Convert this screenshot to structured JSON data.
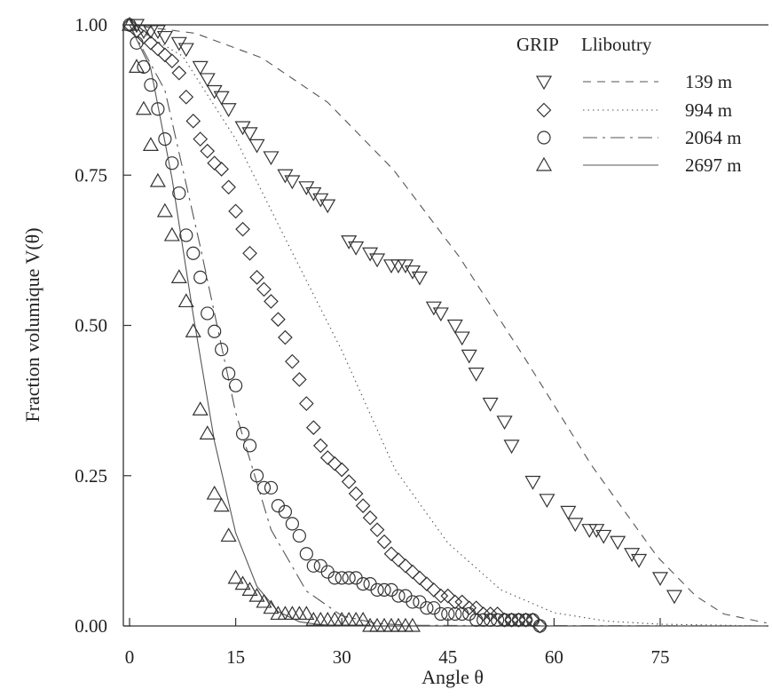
{
  "chart_data": {
    "type": "scatter",
    "xlabel": "Angle θ",
    "ylabel": "Fraction volumique V(θ)",
    "xlim": [
      0,
      90
    ],
    "ylim": [
      0,
      1
    ],
    "x_ticks": [
      "0",
      "15",
      "30",
      "45",
      "60",
      "75"
    ],
    "y_ticks": [
      "0.00",
      "0.25",
      "0.50",
      "0.75",
      "1.00"
    ],
    "legend": {
      "placement": "top-right",
      "header_markers": "GRIP",
      "header_lines": "Lliboutry"
    },
    "series": [
      {
        "name": "139 m",
        "marker": "triangle-down",
        "line": "dashed",
        "points": [
          [
            1,
            1.0
          ],
          [
            2,
            0.99
          ],
          [
            3,
            0.99
          ],
          [
            4,
            0.99
          ],
          [
            5,
            0.98
          ],
          [
            7,
            0.97
          ],
          [
            8,
            0.96
          ],
          [
            10,
            0.93
          ],
          [
            11,
            0.91
          ],
          [
            12,
            0.89
          ],
          [
            13,
            0.88
          ],
          [
            14,
            0.86
          ],
          [
            16,
            0.83
          ],
          [
            17,
            0.82
          ],
          [
            18,
            0.8
          ],
          [
            20,
            0.78
          ],
          [
            22,
            0.75
          ],
          [
            23,
            0.74
          ],
          [
            25,
            0.73
          ],
          [
            26,
            0.72
          ],
          [
            27,
            0.71
          ],
          [
            28,
            0.7
          ],
          [
            31,
            0.64
          ],
          [
            32,
            0.63
          ],
          [
            34,
            0.62
          ],
          [
            35,
            0.61
          ],
          [
            37,
            0.6
          ],
          [
            38,
            0.6
          ],
          [
            39,
            0.6
          ],
          [
            40,
            0.59
          ],
          [
            41,
            0.58
          ],
          [
            43,
            0.53
          ],
          [
            44,
            0.52
          ],
          [
            46,
            0.5
          ],
          [
            47,
            0.48
          ],
          [
            48,
            0.45
          ],
          [
            49,
            0.42
          ],
          [
            51,
            0.37
          ],
          [
            53,
            0.34
          ],
          [
            54,
            0.3
          ],
          [
            57,
            0.24
          ],
          [
            59,
            0.21
          ],
          [
            62,
            0.19
          ],
          [
            63,
            0.17
          ],
          [
            65,
            0.16
          ],
          [
            66,
            0.16
          ],
          [
            67,
            0.15
          ],
          [
            69,
            0.14
          ],
          [
            71,
            0.12
          ],
          [
            72,
            0.11
          ],
          [
            75,
            0.08
          ],
          [
            77,
            0.05
          ]
        ],
        "curve": [
          [
            0,
            1.0
          ],
          [
            9.3,
            0.986
          ],
          [
            18.7,
            0.945
          ],
          [
            28,
            0.871
          ],
          [
            37.3,
            0.759
          ],
          [
            46.6,
            0.614
          ],
          [
            56,
            0.443
          ],
          [
            65.3,
            0.267
          ],
          [
            74.6,
            0.115
          ],
          [
            80,
            0.05
          ],
          [
            84,
            0.02
          ],
          [
            90,
            0.005
          ]
        ]
      },
      {
        "name": "994 m",
        "marker": "diamond",
        "line": "dotted",
        "points": [
          [
            0,
            1.0
          ],
          [
            1,
            0.99
          ],
          [
            2,
            0.98
          ],
          [
            3,
            0.97
          ],
          [
            4,
            0.96
          ],
          [
            5,
            0.95
          ],
          [
            6,
            0.94
          ],
          [
            7,
            0.92
          ],
          [
            8,
            0.88
          ],
          [
            9,
            0.84
          ],
          [
            10,
            0.81
          ],
          [
            11,
            0.79
          ],
          [
            12,
            0.77
          ],
          [
            13,
            0.76
          ],
          [
            14,
            0.73
          ],
          [
            15,
            0.69
          ],
          [
            16,
            0.66
          ],
          [
            17,
            0.62
          ],
          [
            18,
            0.58
          ],
          [
            19,
            0.56
          ],
          [
            20,
            0.54
          ],
          [
            21,
            0.51
          ],
          [
            22,
            0.48
          ],
          [
            23,
            0.44
          ],
          [
            24,
            0.41
          ],
          [
            25,
            0.37
          ],
          [
            26,
            0.33
          ],
          [
            27,
            0.3
          ],
          [
            28,
            0.28
          ],
          [
            29,
            0.27
          ],
          [
            30,
            0.26
          ],
          [
            31,
            0.24
          ],
          [
            32,
            0.22
          ],
          [
            33,
            0.2
          ],
          [
            34,
            0.18
          ],
          [
            35,
            0.16
          ],
          [
            36,
            0.14
          ],
          [
            37,
            0.12
          ],
          [
            38,
            0.11
          ],
          [
            39,
            0.1
          ],
          [
            40,
            0.09
          ],
          [
            41,
            0.08
          ],
          [
            42,
            0.07
          ],
          [
            43,
            0.06
          ],
          [
            44,
            0.05
          ],
          [
            45,
            0.05
          ],
          [
            46,
            0.04
          ],
          [
            47,
            0.04
          ],
          [
            48,
            0.03
          ],
          [
            49,
            0.03
          ],
          [
            50,
            0.02
          ],
          [
            51,
            0.02
          ],
          [
            52,
            0.02
          ],
          [
            53,
            0.01
          ],
          [
            54,
            0.01
          ],
          [
            55,
            0.01
          ],
          [
            56,
            0.01
          ],
          [
            57,
            0.01
          ],
          [
            58,
            0.0
          ]
        ],
        "curve": [
          [
            0,
            1.0
          ],
          [
            7.5,
            0.948
          ],
          [
            15,
            0.81
          ],
          [
            22.5,
            0.633
          ],
          [
            30,
            0.458
          ],
          [
            37.5,
            0.261
          ],
          [
            45,
            0.138
          ],
          [
            52.5,
            0.06
          ],
          [
            60,
            0.022
          ],
          [
            67.5,
            0.008
          ],
          [
            75,
            0.003
          ],
          [
            90,
            0.0
          ]
        ]
      },
      {
        "name": "2064 m",
        "marker": "circle",
        "line": "dash-dot",
        "points": [
          [
            0,
            1.0
          ],
          [
            1,
            0.97
          ],
          [
            2,
            0.93
          ],
          [
            3,
            0.9
          ],
          [
            4,
            0.86
          ],
          [
            5,
            0.81
          ],
          [
            6,
            0.77
          ],
          [
            7,
            0.72
          ],
          [
            8,
            0.65
          ],
          [
            9,
            0.62
          ],
          [
            10,
            0.58
          ],
          [
            11,
            0.52
          ],
          [
            12,
            0.49
          ],
          [
            13,
            0.46
          ],
          [
            14,
            0.42
          ],
          [
            15,
            0.4
          ],
          [
            16,
            0.32
          ],
          [
            17,
            0.3
          ],
          [
            18,
            0.25
          ],
          [
            19,
            0.23
          ],
          [
            20,
            0.23
          ],
          [
            21,
            0.2
          ],
          [
            22,
            0.19
          ],
          [
            23,
            0.17
          ],
          [
            24,
            0.15
          ],
          [
            25,
            0.12
          ],
          [
            26,
            0.1
          ],
          [
            27,
            0.1
          ],
          [
            28,
            0.09
          ],
          [
            29,
            0.08
          ],
          [
            30,
            0.08
          ],
          [
            31,
            0.08
          ],
          [
            32,
            0.08
          ],
          [
            33,
            0.07
          ],
          [
            34,
            0.07
          ],
          [
            35,
            0.06
          ],
          [
            36,
            0.06
          ],
          [
            37,
            0.06
          ],
          [
            38,
            0.05
          ],
          [
            39,
            0.05
          ],
          [
            40,
            0.04
          ],
          [
            41,
            0.04
          ],
          [
            42,
            0.03
          ],
          [
            43,
            0.03
          ],
          [
            44,
            0.02
          ],
          [
            45,
            0.02
          ],
          [
            46,
            0.02
          ],
          [
            47,
            0.02
          ],
          [
            48,
            0.02
          ],
          [
            49,
            0.01
          ],
          [
            50,
            0.01
          ],
          [
            51,
            0.01
          ],
          [
            52,
            0.01
          ],
          [
            53,
            0.01
          ],
          [
            54,
            0.01
          ],
          [
            55,
            0.01
          ],
          [
            56,
            0.01
          ],
          [
            57,
            0.01
          ],
          [
            58,
            0.0
          ]
        ],
        "curve": [
          [
            0,
            1.0
          ],
          [
            5,
            0.891
          ],
          [
            10,
            0.631
          ],
          [
            15,
            0.355
          ],
          [
            20,
            0.16
          ],
          [
            25,
            0.058
          ],
          [
            30,
            0.017
          ],
          [
            35,
            0.004
          ],
          [
            40,
            0.001
          ],
          [
            90,
            0.0
          ]
        ]
      },
      {
        "name": "2697 m",
        "marker": "triangle-up",
        "line": "solid",
        "points": [
          [
            0,
            1.0
          ],
          [
            1,
            0.93
          ],
          [
            2,
            0.86
          ],
          [
            3,
            0.8
          ],
          [
            4,
            0.74
          ],
          [
            5,
            0.69
          ],
          [
            6,
            0.65
          ],
          [
            7,
            0.58
          ],
          [
            8,
            0.54
          ],
          [
            9,
            0.49
          ],
          [
            10,
            0.36
          ],
          [
            11,
            0.32
          ],
          [
            12,
            0.22
          ],
          [
            13,
            0.2
          ],
          [
            14,
            0.15
          ],
          [
            15,
            0.08
          ],
          [
            16,
            0.07
          ],
          [
            17,
            0.06
          ],
          [
            18,
            0.05
          ],
          [
            19,
            0.04
          ],
          [
            20,
            0.03
          ],
          [
            21,
            0.02
          ],
          [
            22,
            0.02
          ],
          [
            23,
            0.02
          ],
          [
            24,
            0.02
          ],
          [
            25,
            0.02
          ],
          [
            26,
            0.01
          ],
          [
            27,
            0.01
          ],
          [
            28,
            0.01
          ],
          [
            29,
            0.01
          ],
          [
            30,
            0.01
          ],
          [
            31,
            0.01
          ],
          [
            32,
            0.01
          ],
          [
            33,
            0.01
          ],
          [
            34,
            0.0
          ],
          [
            35,
            0.0
          ],
          [
            36,
            0.0
          ],
          [
            37,
            0.0
          ],
          [
            38,
            0.0
          ],
          [
            39,
            0.0
          ],
          [
            40,
            0.0
          ]
        ],
        "curve": [
          [
            0,
            1.0
          ],
          [
            3,
            0.927
          ],
          [
            6,
            0.745
          ],
          [
            9,
            0.517
          ],
          [
            12,
            0.307
          ],
          [
            15,
            0.155
          ],
          [
            18,
            0.066
          ],
          [
            21,
            0.024
          ],
          [
            24,
            0.007
          ],
          [
            27,
            0.002
          ],
          [
            30,
            0.0
          ],
          [
            90,
            0.0
          ]
        ]
      }
    ]
  }
}
